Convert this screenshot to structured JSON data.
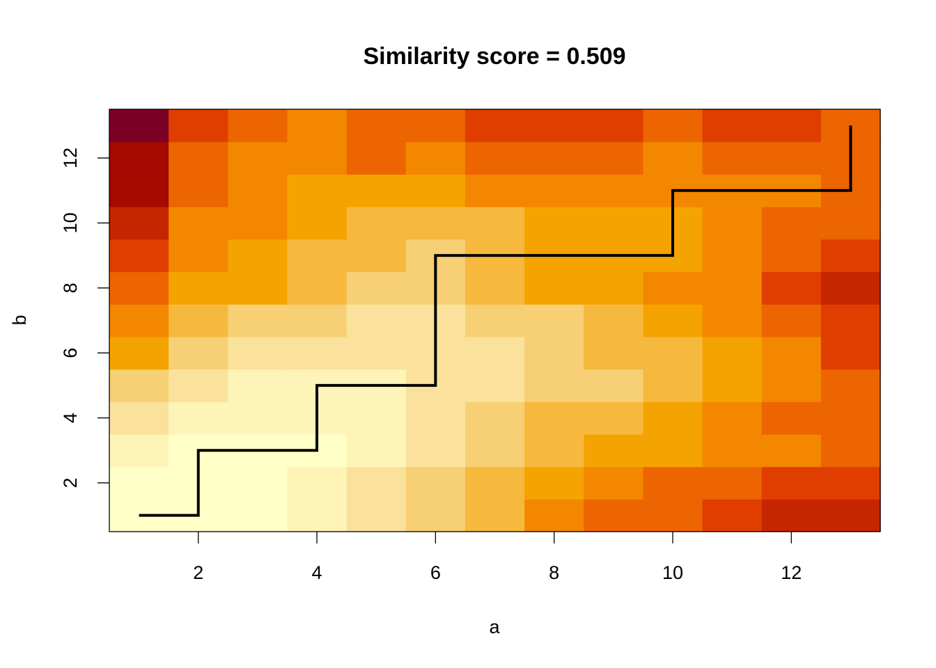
{
  "chart_data": {
    "type": "heatmap",
    "title": "Similarity score = 0.509",
    "xlabel": "a",
    "ylabel": "b",
    "x": [
      1,
      2,
      3,
      4,
      5,
      6,
      7,
      8,
      9,
      10,
      11,
      12,
      13
    ],
    "y": [
      1,
      2,
      3,
      4,
      5,
      6,
      7,
      8,
      9,
      10,
      11,
      12,
      13
    ],
    "xlim": [
      0.5,
      13.5
    ],
    "ylim": [
      0.5,
      13.5
    ],
    "xticks": [
      2,
      4,
      6,
      8,
      10,
      12
    ],
    "yticks": [
      2,
      4,
      6,
      8,
      10,
      12
    ],
    "color_scale": [
      "#FFFFC8",
      "#FEF4B8",
      "#FAE29C",
      "#F7CF74",
      "#F6B93E",
      "#F5A300",
      "#F38700",
      "#EC6500",
      "#E03D00",
      "#C52600",
      "#A50900",
      "#7A0026"
    ],
    "z_levels": [
      [
        0,
        0,
        0,
        1,
        2,
        3,
        4,
        6,
        7,
        7,
        8,
        9,
        9
      ],
      [
        0,
        0,
        0,
        1,
        2,
        3,
        4,
        5,
        6,
        7,
        7,
        8,
        8
      ],
      [
        1,
        0,
        0,
        0,
        1,
        2,
        3,
        4,
        5,
        5,
        6,
        6,
        7
      ],
      [
        2,
        1,
        1,
        1,
        1,
        2,
        3,
        4,
        4,
        5,
        6,
        7,
        7
      ],
      [
        3,
        2,
        1,
        1,
        1,
        2,
        2,
        3,
        3,
        4,
        5,
        6,
        7
      ],
      [
        5,
        3,
        2,
        2,
        2,
        2,
        2,
        3,
        4,
        4,
        5,
        6,
        8
      ],
      [
        6,
        4,
        3,
        3,
        2,
        2,
        3,
        3,
        4,
        5,
        6,
        7,
        8
      ],
      [
        7,
        5,
        5,
        4,
        3,
        3,
        4,
        5,
        5,
        6,
        6,
        8,
        9
      ],
      [
        8,
        6,
        5,
        4,
        4,
        3,
        4,
        5,
        5,
        5,
        6,
        7,
        8
      ],
      [
        9,
        6,
        6,
        5,
        4,
        4,
        4,
        5,
        5,
        5,
        6,
        7,
        7
      ],
      [
        10,
        7,
        6,
        5,
        5,
        5,
        6,
        6,
        6,
        6,
        6,
        6,
        7
      ],
      [
        10,
        7,
        6,
        6,
        7,
        6,
        7,
        7,
        7,
        6,
        7,
        7,
        7
      ],
      [
        11,
        8,
        7,
        6,
        7,
        7,
        8,
        8,
        8,
        7,
        8,
        8,
        7
      ]
    ],
    "path": {
      "a": [
        1,
        2,
        2,
        4,
        4,
        6,
        6,
        10,
        10,
        13,
        13
      ],
      "b": [
        1,
        1,
        3,
        3,
        5,
        5,
        9,
        9,
        11,
        11,
        13
      ],
      "color": "#000000"
    },
    "grid": false,
    "legend": "none"
  }
}
